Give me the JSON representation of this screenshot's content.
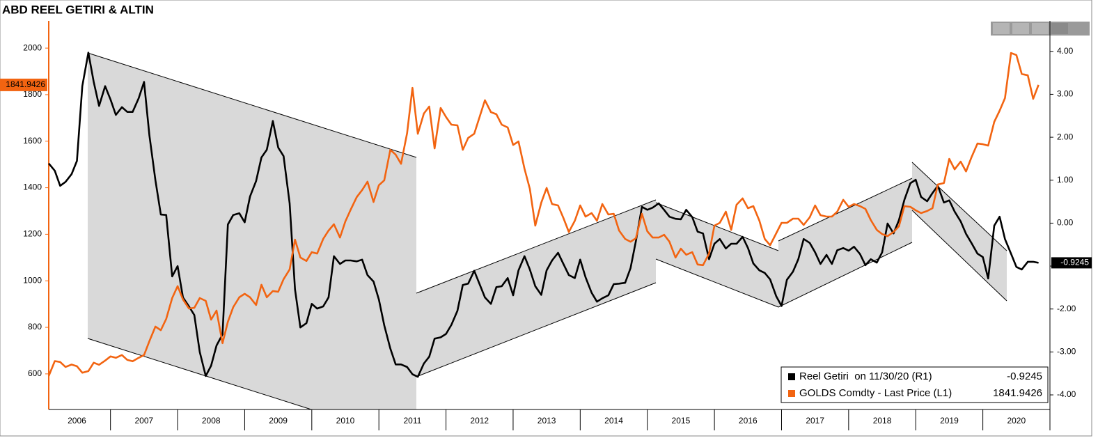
{
  "chart_data": {
    "type": "line",
    "title": "ABD REEL GETIRI & ALTIN",
    "x": [
      2006.08,
      2006.17,
      2006.25,
      2006.33,
      2006.42,
      2006.5,
      2006.58,
      2006.67,
      2006.75,
      2006.83,
      2006.92,
      2007,
      2007.08,
      2007.17,
      2007.25,
      2007.33,
      2007.42,
      2007.5,
      2007.58,
      2007.67,
      2007.75,
      2007.83,
      2007.92,
      2008,
      2008.08,
      2008.17,
      2008.25,
      2008.33,
      2008.42,
      2008.5,
      2008.58,
      2008.67,
      2008.75,
      2008.83,
      2008.92,
      2009,
      2009.08,
      2009.17,
      2009.25,
      2009.33,
      2009.42,
      2009.5,
      2009.58,
      2009.67,
      2009.75,
      2009.83,
      2009.92,
      2010,
      2010.08,
      2010.17,
      2010.25,
      2010.33,
      2010.42,
      2010.5,
      2010.58,
      2010.67,
      2010.75,
      2010.83,
      2010.92,
      2011,
      2011.08,
      2011.17,
      2011.25,
      2011.33,
      2011.42,
      2011.5,
      2011.58,
      2011.67,
      2011.75,
      2011.83,
      2011.92,
      2012,
      2012.08,
      2012.17,
      2012.25,
      2012.33,
      2012.42,
      2012.5,
      2012.58,
      2012.67,
      2012.75,
      2012.83,
      2012.92,
      2013,
      2013.08,
      2013.17,
      2013.25,
      2013.33,
      2013.42,
      2013.5,
      2013.58,
      2013.67,
      2013.75,
      2013.83,
      2013.92,
      2014,
      2014.08,
      2014.17,
      2014.25,
      2014.33,
      2014.42,
      2014.5,
      2014.58,
      2014.67,
      2014.75,
      2014.83,
      2014.92,
      2015,
      2015.08,
      2015.17,
      2015.25,
      2015.33,
      2015.42,
      2015.5,
      2015.58,
      2015.67,
      2015.75,
      2015.83,
      2015.92,
      2016,
      2016.08,
      2016.17,
      2016.25,
      2016.33,
      2016.42,
      2016.5,
      2016.58,
      2016.67,
      2016.75,
      2016.83,
      2016.92,
      2017,
      2017.08,
      2017.17,
      2017.25,
      2017.33,
      2017.42,
      2017.5,
      2017.58,
      2017.67,
      2017.75,
      2017.83,
      2017.92,
      2018,
      2018.08,
      2018.17,
      2018.25,
      2018.33,
      2018.42,
      2018.5,
      2018.58,
      2018.67,
      2018.75,
      2018.83,
      2018.92,
      2019,
      2019.08,
      2019.17,
      2019.25,
      2019.33,
      2019.42,
      2019.5,
      2019.58,
      2019.67,
      2019.75,
      2019.83,
      2019.92,
      2020,
      2020.08,
      2020.17,
      2020.25,
      2020.33,
      2020.42,
      2020.5,
      2020.58,
      2020.67,
      2020.75,
      2020.83
    ],
    "series": [
      {
        "name": "Reel Getiri  on 11/30/20 (R1)",
        "color": "#000000",
        "axis": "y2",
        "values": [
          1.39,
          1.22,
          0.87,
          0.96,
          1.14,
          1.45,
          3.19,
          3.97,
          3.29,
          2.73,
          3.19,
          2.88,
          2.52,
          2.7,
          2.59,
          2.59,
          2.91,
          3.29,
          2.04,
          1.0,
          0.2,
          0.19,
          -1.24,
          -1.0,
          -1.73,
          -1.94,
          -2.14,
          -3.0,
          -3.56,
          -3.32,
          -2.85,
          -2.59,
          -0.03,
          0.19,
          0.23,
          0.02,
          0.62,
          0.98,
          1.53,
          1.71,
          2.38,
          1.76,
          1.56,
          0.46,
          -1.54,
          -2.43,
          -2.33,
          -1.88,
          -1.99,
          -1.94,
          -1.73,
          -0.77,
          -0.95,
          -0.87,
          -0.87,
          -0.89,
          -0.85,
          -1.21,
          -1.36,
          -1.78,
          -2.38,
          -2.92,
          -3.29,
          -3.29,
          -3.35,
          -3.52,
          -3.58,
          -3.27,
          -3.11,
          -2.69,
          -2.66,
          -2.58,
          -2.37,
          -2.04,
          -1.44,
          -1.41,
          -1.11,
          -1.42,
          -1.73,
          -1.88,
          -1.49,
          -1.47,
          -1.28,
          -1.68,
          -1.1,
          -0.77,
          -1.08,
          -1.47,
          -1.67,
          -1.1,
          -0.87,
          -0.69,
          -0.95,
          -1.21,
          -1.28,
          -0.85,
          -1.26,
          -1.62,
          -1.83,
          -1.75,
          -1.68,
          -1.42,
          -1.41,
          -1.39,
          -1.05,
          -0.42,
          0.38,
          0.31,
          0.36,
          0.46,
          0.31,
          0.15,
          0.1,
          0.09,
          0.31,
          0.14,
          -0.2,
          -0.24,
          -0.84,
          -0.48,
          -0.37,
          -0.59,
          -0.48,
          -0.48,
          -0.32,
          -0.58,
          -0.94,
          -1.1,
          -1.16,
          -1.31,
          -1.7,
          -1.93,
          -1.32,
          -1.13,
          -0.84,
          -0.37,
          -0.46,
          -0.68,
          -0.95,
          -0.74,
          -0.95,
          -0.63,
          -0.58,
          -0.64,
          -0.55,
          -0.72,
          -0.98,
          -0.84,
          -0.92,
          -0.68,
          -0.01,
          -0.24,
          0.07,
          0.54,
          0.93,
          1.01,
          0.61,
          0.51,
          0.7,
          0.87,
          0.48,
          0.53,
          0.27,
          0.04,
          -0.25,
          -0.46,
          -0.71,
          -0.79,
          -1.29,
          -0.06,
          0.15,
          -0.37,
          -0.71,
          -1.02,
          -1.08,
          -0.9,
          -0.9,
          -0.9245
        ]
      },
      {
        "name": "GOLDS Comdty - Last Price (L1)",
        "color": "#f26411",
        "values": [
          591,
          655,
          651,
          630,
          640,
          633,
          605,
          612,
          648,
          639,
          657,
          675,
          669,
          681,
          660,
          654,
          669,
          681,
          741,
          803,
          788,
          836,
          926,
          977,
          920,
          881,
          884,
          926,
          914,
          833,
          872,
          732,
          824,
          887,
          929,
          944,
          929,
          896,
          983,
          929,
          956,
          953,
          1007,
          1049,
          1177,
          1100,
          1085,
          1123,
          1117,
          1180,
          1216,
          1243,
          1186,
          1255,
          1306,
          1360,
          1390,
          1426,
          1339,
          1411,
          1432,
          1563,
          1542,
          1503,
          1635,
          1829,
          1632,
          1719,
          1749,
          1569,
          1743,
          1704,
          1671,
          1668,
          1563,
          1614,
          1632,
          1704,
          1776,
          1725,
          1716,
          1671,
          1659,
          1584,
          1599,
          1482,
          1395,
          1237,
          1336,
          1399,
          1330,
          1324,
          1270,
          1210,
          1258,
          1324,
          1276,
          1291,
          1258,
          1330,
          1285,
          1288,
          1216,
          1180,
          1168,
          1183,
          1288,
          1213,
          1186,
          1186,
          1198,
          1168,
          1100,
          1138,
          1112,
          1123,
          1070,
          1067,
          1117,
          1237,
          1249,
          1297,
          1219,
          1327,
          1354,
          1312,
          1321,
          1258,
          1180,
          1153,
          1204,
          1249,
          1249,
          1267,
          1267,
          1240,
          1273,
          1324,
          1282,
          1276,
          1276,
          1297,
          1348,
          1318,
          1330,
          1321,
          1309,
          1261,
          1219,
          1201,
          1192,
          1210,
          1234,
          1321,
          1318,
          1303,
          1291,
          1300,
          1312,
          1414,
          1420,
          1524,
          1479,
          1512,
          1470,
          1530,
          1590,
          1587,
          1581,
          1683,
          1731,
          1785,
          1979,
          1970,
          1889,
          1883,
          1782,
          1841.9426
        ]
      }
    ],
    "xlim": [
      2006.08,
      2021.0
    ],
    "xticks": [
      2006,
      2007,
      2008,
      2009,
      2010,
      2011,
      2012,
      2013,
      2014,
      2015,
      2016,
      2017,
      2018,
      2019,
      2020
    ],
    "ylim": [
      447,
      2117
    ],
    "yticks": [
      600,
      800,
      1000,
      1200,
      1400,
      1600,
      1800,
      2000
    ],
    "y2lim": [
      -4.34,
      4.71
    ],
    "y2ticks": [
      {
        "value": 4,
        "label": "4.00"
      },
      {
        "value": 3,
        "label": "3.00"
      },
      {
        "value": 2,
        "label": "2.00"
      },
      {
        "value": 1,
        "label": "1.00"
      },
      {
        "value": 0,
        "label": "0.00"
      },
      {
        "value": -1,
        "label": "-1.00"
      },
      {
        "value": -2,
        "label": "-2.00"
      },
      {
        "value": -3,
        "label": "-3.00"
      },
      {
        "value": -4,
        "label": "-4.00"
      }
    ],
    "legend": "lower right"
  }
}
